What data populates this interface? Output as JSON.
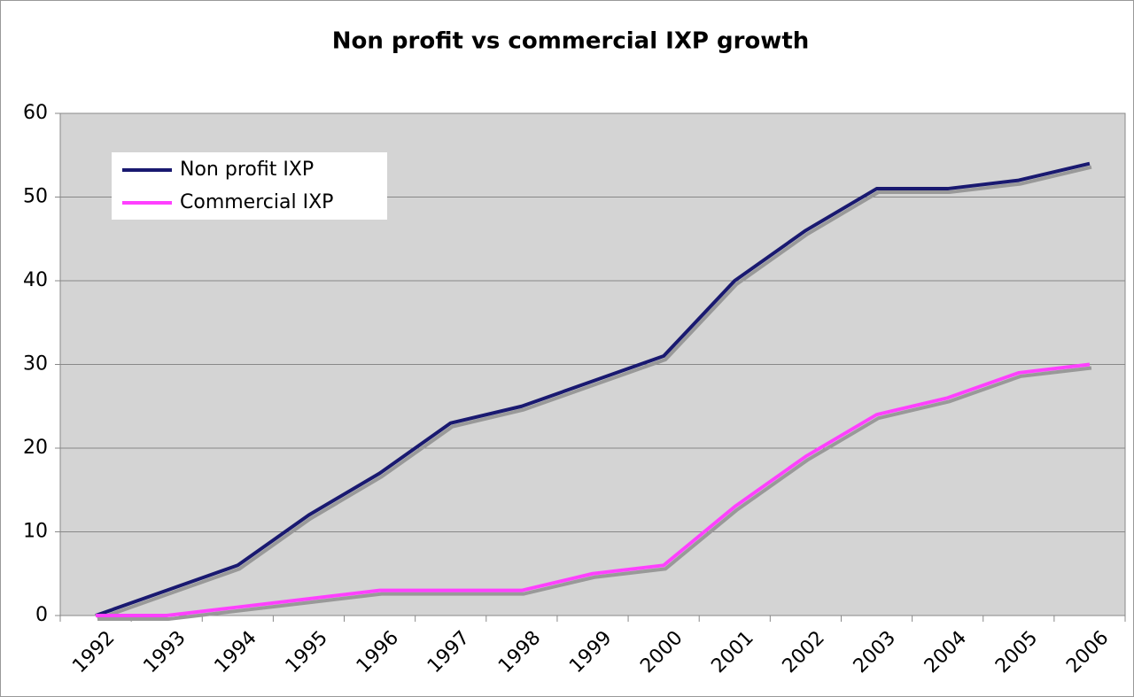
{
  "chart_data": {
    "type": "line",
    "title": "Non profit vs commercial IXP growth",
    "categories": [
      "1992",
      "1993",
      "1994",
      "1995",
      "1996",
      "1997",
      "1998",
      "1999",
      "2000",
      "2001",
      "2002",
      "2003",
      "2004",
      "2005",
      "2006"
    ],
    "series": [
      {
        "name": "Non profit IXP",
        "color": "#191970",
        "values": [
          0,
          3,
          6,
          12,
          17,
          23,
          25,
          28,
          31,
          40,
          46,
          51,
          51,
          52,
          54
        ]
      },
      {
        "name": "Commercial IXP",
        "color": "#ff40ff",
        "values": [
          0,
          0,
          1,
          2,
          3,
          3,
          3,
          5,
          6,
          13,
          19,
          24,
          26,
          29,
          30
        ]
      }
    ],
    "ylim": [
      0,
      60
    ],
    "yticks": [
      0,
      10,
      20,
      30,
      40,
      50,
      60
    ],
    "grid": true,
    "legend": "upper left"
  }
}
